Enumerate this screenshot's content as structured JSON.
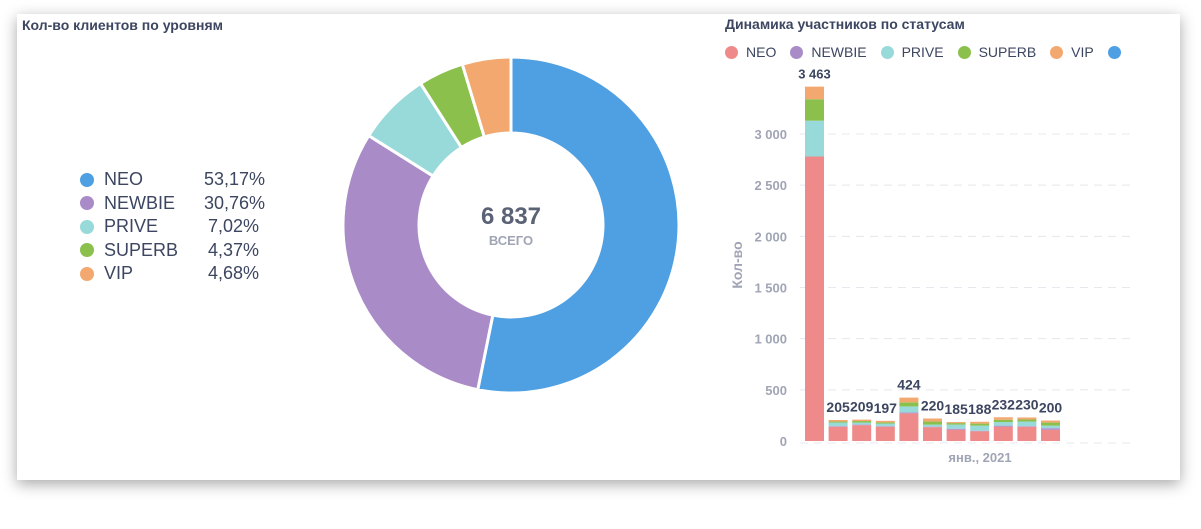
{
  "left": {
    "title": "Кол-во клиентов по уровням",
    "total": "6 837",
    "total_label": "ВСЕГО",
    "items": [
      {
        "name": "NEO",
        "pct": "53,17%",
        "value": 53.17,
        "color": "#4f9fe3"
      },
      {
        "name": "NEWBIE",
        "pct": "30,76%",
        "value": 30.76,
        "color": "#a98bc8"
      },
      {
        "name": "PRIVE",
        "pct": "7,02%",
        "value": 7.02,
        "color": "#98d9d9"
      },
      {
        "name": "SUPERB",
        "pct": "4,37%",
        "value": 4.37,
        "color": "#8bc04c"
      },
      {
        "name": "VIP",
        "pct": "4,68%",
        "value": 4.68,
        "color": "#f2a86f"
      }
    ]
  },
  "right": {
    "title": "Динамика участников по статусам",
    "legend": [
      {
        "name": "NEO",
        "color": "#ee8a8a"
      },
      {
        "name": "NEWBIE",
        "color": "#a98bc8"
      },
      {
        "name": "PRIVE",
        "color": "#98d9d9"
      },
      {
        "name": "SUPERB",
        "color": "#8bc04c"
      },
      {
        "name": "VIP",
        "color": "#f2a86f"
      },
      {
        "name": "",
        "color": "#4f9fe3"
      }
    ]
  },
  "chart_data": {
    "type": "bar",
    "stacked": true,
    "title": "Динамика участников по статусам",
    "ylabel": "Кол-во",
    "xlabel": "янв., 2021",
    "ylim": [
      0,
      3500
    ],
    "yticks": [
      "0",
      "500",
      "1 000",
      "1 500",
      "2 000",
      "2 500",
      "3 000"
    ],
    "tick_values": [
      0,
      500,
      1000,
      1500,
      2000,
      2500,
      3000
    ],
    "totals": [
      "3 463",
      "205",
      "209",
      "197",
      "424",
      "220",
      "185",
      "188",
      "232",
      "230",
      "200"
    ],
    "series": [
      {
        "name": "NEO",
        "values": [
          2780,
          140,
          155,
          140,
          270,
          135,
          110,
          95,
          140,
          140,
          110
        ]
      },
      {
        "name": "NEWBIE",
        "values": [
          0,
          5,
          5,
          5,
          8,
          5,
          10,
          5,
          10,
          5,
          15
        ]
      },
      {
        "name": "PRIVE",
        "values": [
          350,
          35,
          20,
          25,
          60,
          20,
          40,
          50,
          35,
          45,
          25
        ]
      },
      {
        "name": "SUPERB",
        "values": [
          210,
          10,
          15,
          12,
          40,
          30,
          15,
          20,
          22,
          20,
          30
        ]
      },
      {
        "name": "VIP",
        "values": [
          123,
          15,
          14,
          15,
          46,
          30,
          10,
          18,
          25,
          20,
          20
        ]
      }
    ]
  }
}
